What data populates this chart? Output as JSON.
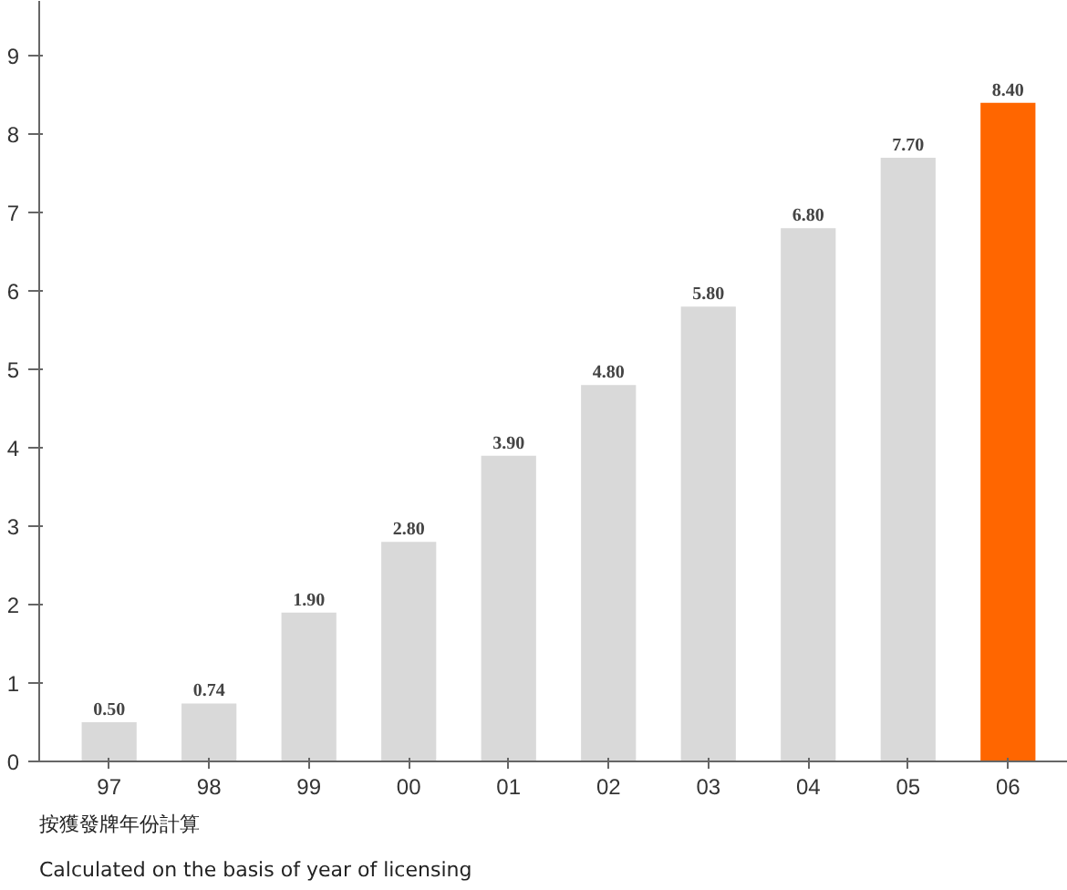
{
  "chart_data": {
    "type": "bar",
    "categories": [
      "97",
      "98",
      "99",
      "00",
      "01",
      "02",
      "03",
      "04",
      "05",
      "06"
    ],
    "values": [
      0.5,
      0.74,
      1.9,
      2.8,
      3.9,
      4.8,
      5.8,
      6.8,
      7.7,
      8.4
    ],
    "value_labels": [
      "0.50",
      "0.74",
      "1.90",
      "2.80",
      "3.90",
      "4.80",
      "5.80",
      "6.80",
      "7.70",
      "8.40"
    ],
    "colors": [
      "#d9d9d9",
      "#d9d9d9",
      "#d9d9d9",
      "#d9d9d9",
      "#d9d9d9",
      "#d9d9d9",
      "#d9d9d9",
      "#d9d9d9",
      "#d9d9d9",
      "#ff6600"
    ],
    "ylim": [
      0,
      9.7
    ],
    "yticks": [
      0,
      1,
      2,
      3,
      4,
      5,
      6,
      7,
      8,
      9
    ],
    "grid": false,
    "annotations": [
      "按獲發牌年份計算",
      "Calculated on the basis of year of licensing"
    ]
  }
}
